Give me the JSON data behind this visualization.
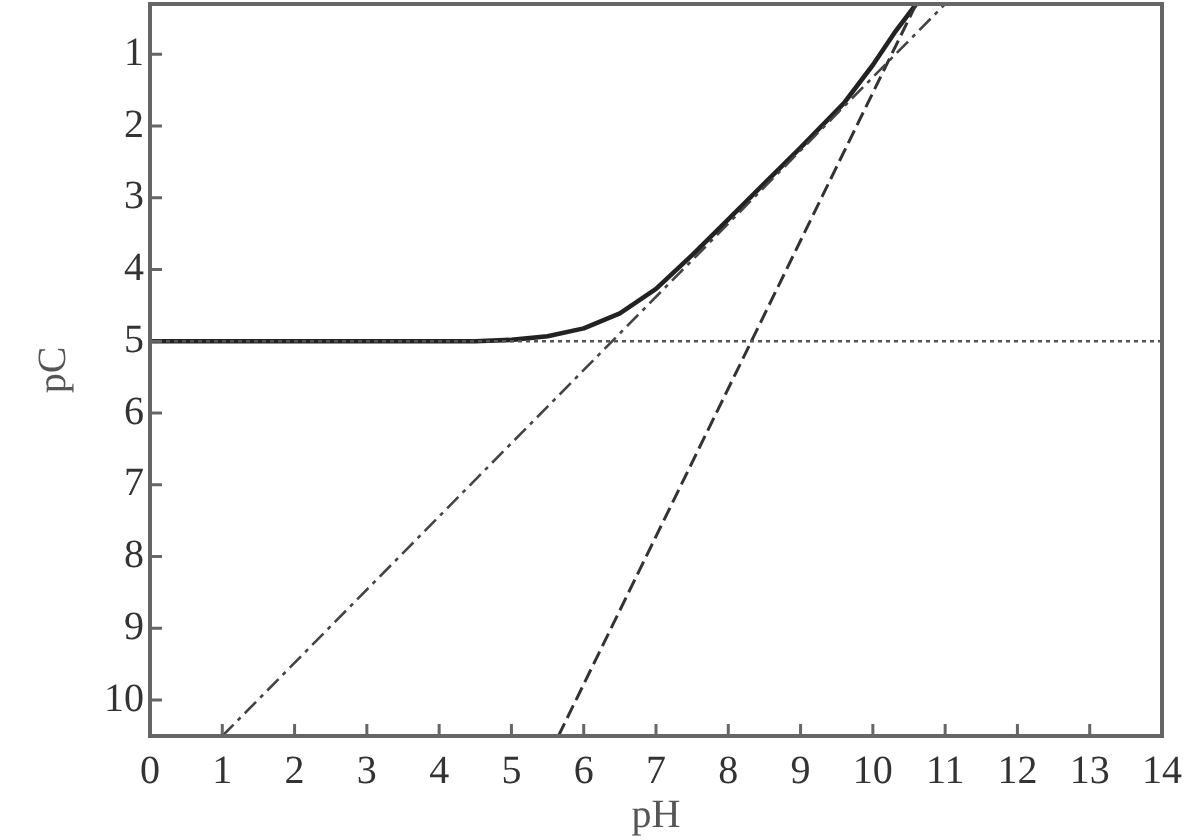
{
  "chart_data": {
    "type": "line",
    "xlabel": "pH",
    "ylabel": "pC",
    "xlim": [
      0,
      14
    ],
    "ylim": [
      10.5,
      0.3
    ],
    "xticks": [
      0,
      1,
      2,
      3,
      4,
      5,
      6,
      7,
      8,
      9,
      10,
      11,
      12,
      13,
      14
    ],
    "yticks": [
      1,
      2,
      3,
      4,
      5,
      6,
      7,
      8,
      9,
      10
    ],
    "grid": false,
    "legend": false,
    "marker": "none",
    "series": [
      {
        "color": "#555555",
        "line_style": "dotted",
        "x": [
          0,
          14
        ],
        "values": [
          5,
          5
        ]
      },
      {
        "color": "#444444",
        "line_style": "dashdot",
        "x": [
          1.0,
          11.0
        ],
        "values": [
          10.5,
          0.3
        ]
      },
      {
        "color": "#333333",
        "line_style": "dashed",
        "x": [
          5.65,
          10.6
        ],
        "values": [
          10.5,
          0.3
        ]
      },
      {
        "color": "#222222",
        "line_style": "solid",
        "x": [
          0,
          4.5,
          5,
          5.5,
          6,
          6.5,
          7,
          7.5,
          8,
          8.5,
          9,
          9.6,
          10,
          10.3,
          10.6
        ],
        "values": [
          5,
          5,
          4.98,
          4.93,
          4.82,
          4.61,
          4.27,
          3.8,
          3.3,
          2.8,
          2.3,
          1.68,
          1.15,
          0.7,
          0.3
        ]
      }
    ]
  }
}
